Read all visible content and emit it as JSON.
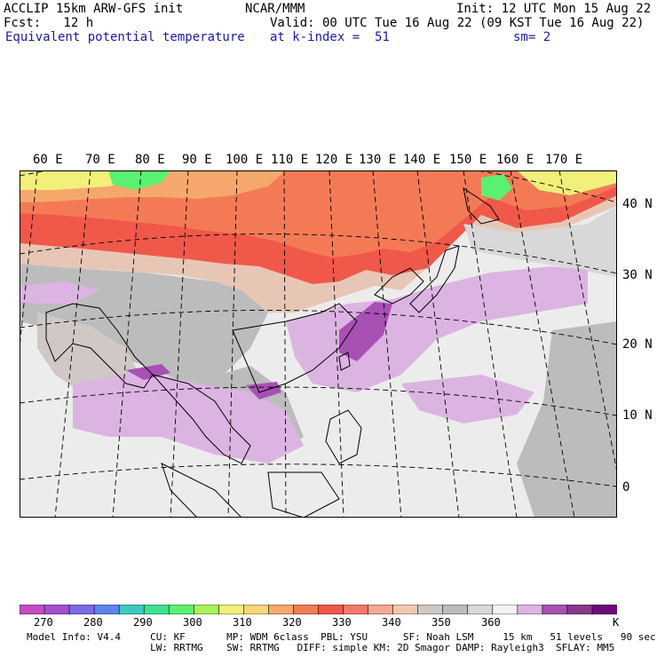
{
  "header": {
    "line1_left": "ACCLIP 15km ARW-GFS init",
    "line1_center": "NCAR/MMM",
    "line1_right": "Init: 12 UTC Mon 15 Aug 22",
    "line2_left": "Fcst:   12 h",
    "line2_right": "Valid: 00 UTC Tue 16 Aug 22 (09 KST Tue 16 Aug 22)",
    "line3_left": "Equivalent potential temperature",
    "line3_center": "at k-index =  51",
    "line3_right": "sm= 2"
  },
  "map": {
    "lon_labels": [
      "60 E",
      "70 E",
      "80 E",
      "90 E",
      "100 E",
      "110 E",
      "120 E",
      "130 E",
      "140 E",
      "150 E",
      "160 E",
      "170 E"
    ],
    "lat_labels": [
      "40 N",
      "30 N",
      "20 N",
      "10 N",
      "0"
    ]
  },
  "colorbar": {
    "unit": "K",
    "labels": [
      "270",
      "280",
      "290",
      "300",
      "310",
      "320",
      "330",
      "340",
      "350",
      "360"
    ],
    "colors": [
      "#c44cc4",
      "#a34ed0",
      "#7c6ae6",
      "#5a86ea",
      "#3ec8c0",
      "#3ee08e",
      "#5cf070",
      "#a8f25a",
      "#f0f07a",
      "#f6d67a",
      "#f6a86c",
      "#f47a56",
      "#f0584a",
      "#f67868",
      "#f4a890",
      "#f0c8b0",
      "#d0c8c4",
      "#bcbcbc",
      "#d8d8d8",
      "#f2f2f2",
      "#dcb4e2",
      "#a850b4",
      "#88388c",
      "#6c0a78"
    ]
  },
  "footer": {
    "line1": "Model Info: V4.4     CU: KF       MP: WDM 6class  PBL: YSU      SF: Noah LSM     15 km   51 levels   90 sec",
    "line2": "                     LW: RRTMG    SW: RRTMG   DIFF: simple KM: 2D Smagor DAMP: Rayleigh3  SFLAY: MM5"
  }
}
